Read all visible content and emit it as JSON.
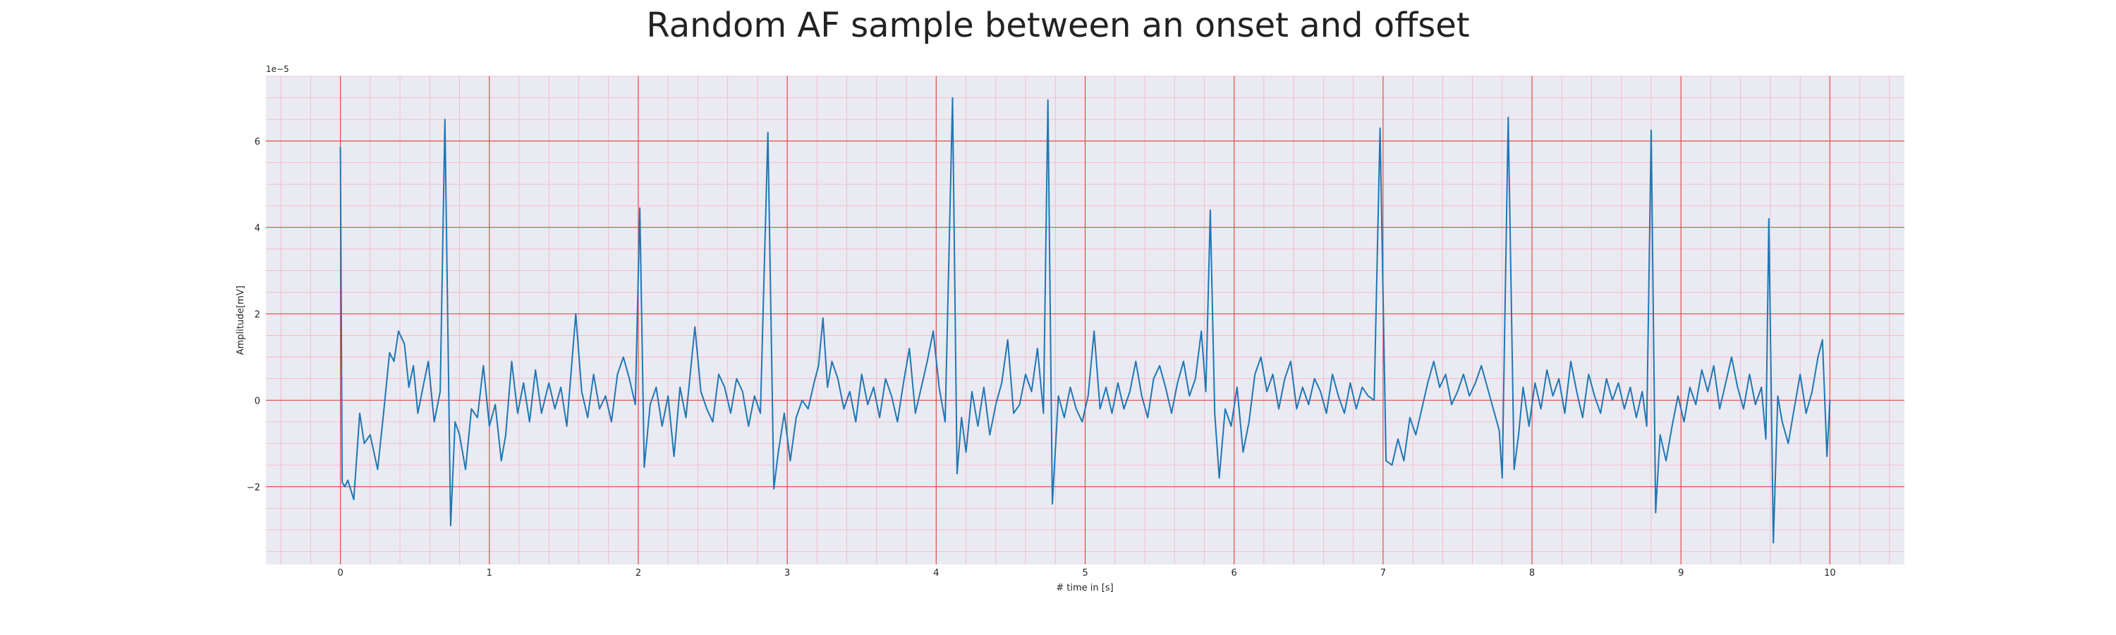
{
  "chart_data": {
    "type": "line",
    "title": "Random AF sample between an onset and offset",
    "xlabel": "# time in [s]",
    "ylabel": "Amplitude[mV]",
    "y_offset_label": "1e−5",
    "xlim": [
      -0.5,
      10.5
    ],
    "ylim": [
      -3.8,
      7.5
    ],
    "x_ticks": [
      0,
      1,
      2,
      3,
      4,
      5,
      6,
      7,
      8,
      9,
      10
    ],
    "y_ticks": [
      -2,
      0,
      2,
      4,
      6
    ],
    "grid": true,
    "grid_color": "#e24a4a",
    "minor_grid_color": "#f3b4c0",
    "plot_background": "#eaeaf2",
    "series": [
      {
        "color": "#1f77b4",
        "keypoints": [
          [
            0.0,
            5.85
          ],
          [
            0.012,
            -1.9
          ],
          [
            0.03,
            -2.0
          ],
          [
            0.05,
            -1.85
          ],
          [
            0.09,
            -2.3
          ],
          [
            0.13,
            -0.3
          ],
          [
            0.16,
            -1.0
          ],
          [
            0.2,
            -0.8
          ],
          [
            0.25,
            -1.6
          ],
          [
            0.29,
            -0.3
          ],
          [
            0.33,
            1.1
          ],
          [
            0.36,
            0.9
          ],
          [
            0.39,
            1.6
          ],
          [
            0.43,
            1.3
          ],
          [
            0.46,
            0.3
          ],
          [
            0.49,
            0.8
          ],
          [
            0.52,
            -0.3
          ],
          [
            0.56,
            0.4
          ],
          [
            0.59,
            0.9
          ],
          [
            0.63,
            -0.5
          ],
          [
            0.67,
            0.2
          ],
          [
            0.702,
            6.5
          ],
          [
            0.74,
            -2.9
          ],
          [
            0.77,
            -0.5
          ],
          [
            0.8,
            -0.8
          ],
          [
            0.84,
            -1.6
          ],
          [
            0.88,
            -0.2
          ],
          [
            0.92,
            -0.4
          ],
          [
            0.96,
            0.8
          ],
          [
            1.0,
            -0.6
          ],
          [
            1.04,
            -0.1
          ],
          [
            1.08,
            -1.4
          ],
          [
            1.11,
            -0.8
          ],
          [
            1.15,
            0.9
          ],
          [
            1.19,
            -0.3
          ],
          [
            1.23,
            0.4
          ],
          [
            1.27,
            -0.5
          ],
          [
            1.31,
            0.7
          ],
          [
            1.35,
            -0.3
          ],
          [
            1.4,
            0.4
          ],
          [
            1.44,
            -0.2
          ],
          [
            1.48,
            0.3
          ],
          [
            1.52,
            -0.6
          ],
          [
            1.58,
            2.0
          ],
          [
            1.62,
            0.2
          ],
          [
            1.66,
            -0.4
          ],
          [
            1.7,
            0.6
          ],
          [
            1.74,
            -0.2
          ],
          [
            1.78,
            0.1
          ],
          [
            1.82,
            -0.5
          ],
          [
            1.86,
            0.6
          ],
          [
            1.9,
            1.0
          ],
          [
            1.94,
            0.5
          ],
          [
            1.98,
            -0.1
          ],
          [
            2.01,
            4.45
          ],
          [
            2.04,
            -1.55
          ],
          [
            2.08,
            -0.1
          ],
          [
            2.12,
            0.3
          ],
          [
            2.16,
            -0.6
          ],
          [
            2.2,
            0.1
          ],
          [
            2.24,
            -1.3
          ],
          [
            2.28,
            0.3
          ],
          [
            2.32,
            -0.4
          ],
          [
            2.38,
            1.7
          ],
          [
            2.42,
            0.2
          ],
          [
            2.46,
            -0.2
          ],
          [
            2.5,
            -0.5
          ],
          [
            2.54,
            0.6
          ],
          [
            2.58,
            0.3
          ],
          [
            2.62,
            -0.3
          ],
          [
            2.66,
            0.5
          ],
          [
            2.7,
            0.2
          ],
          [
            2.74,
            -0.6
          ],
          [
            2.78,
            0.1
          ],
          [
            2.82,
            -0.3
          ],
          [
            2.87,
            6.2
          ],
          [
            2.91,
            -2.05
          ],
          [
            2.94,
            -1.2
          ],
          [
            2.98,
            -0.3
          ],
          [
            3.02,
            -1.4
          ],
          [
            3.06,
            -0.4
          ],
          [
            3.1,
            0.0
          ],
          [
            3.14,
            -0.2
          ],
          [
            3.18,
            0.4
          ],
          [
            3.21,
            0.8
          ],
          [
            3.24,
            1.9
          ],
          [
            3.27,
            0.3
          ],
          [
            3.3,
            0.9
          ],
          [
            3.34,
            0.5
          ],
          [
            3.38,
            -0.2
          ],
          [
            3.42,
            0.2
          ],
          [
            3.46,
            -0.5
          ],
          [
            3.5,
            0.6
          ],
          [
            3.54,
            -0.1
          ],
          [
            3.58,
            0.3
          ],
          [
            3.62,
            -0.4
          ],
          [
            3.66,
            0.5
          ],
          [
            3.7,
            0.1
          ],
          [
            3.74,
            -0.5
          ],
          [
            3.78,
            0.4
          ],
          [
            3.82,
            1.2
          ],
          [
            3.86,
            -0.3
          ],
          [
            3.9,
            0.3
          ],
          [
            3.94,
            0.9
          ],
          [
            3.98,
            1.6
          ],
          [
            4.02,
            0.3
          ],
          [
            4.06,
            -0.5
          ],
          [
            4.11,
            7.0
          ],
          [
            4.14,
            -1.7
          ],
          [
            4.17,
            -0.4
          ],
          [
            4.2,
            -1.2
          ],
          [
            4.24,
            0.2
          ],
          [
            4.28,
            -0.6
          ],
          [
            4.32,
            0.3
          ],
          [
            4.36,
            -0.8
          ],
          [
            4.4,
            -0.1
          ],
          [
            4.44,
            0.4
          ],
          [
            4.48,
            1.4
          ],
          [
            4.52,
            -0.3
          ],
          [
            4.56,
            -0.1
          ],
          [
            4.6,
            0.6
          ],
          [
            4.64,
            0.2
          ],
          [
            4.68,
            1.2
          ],
          [
            4.72,
            -0.3
          ],
          [
            4.75,
            6.95
          ],
          [
            4.78,
            -2.4
          ],
          [
            4.82,
            0.1
          ],
          [
            4.86,
            -0.4
          ],
          [
            4.9,
            0.3
          ],
          [
            4.94,
            -0.2
          ],
          [
            4.98,
            -0.5
          ],
          [
            5.02,
            0.1
          ],
          [
            5.06,
            1.6
          ],
          [
            5.1,
            -0.2
          ],
          [
            5.14,
            0.3
          ],
          [
            5.18,
            -0.3
          ],
          [
            5.22,
            0.4
          ],
          [
            5.26,
            -0.2
          ],
          [
            5.3,
            0.2
          ],
          [
            5.34,
            0.9
          ],
          [
            5.38,
            0.1
          ],
          [
            5.42,
            -0.4
          ],
          [
            5.46,
            0.5
          ],
          [
            5.5,
            0.8
          ],
          [
            5.54,
            0.3
          ],
          [
            5.58,
            -0.3
          ],
          [
            5.62,
            0.4
          ],
          [
            5.66,
            0.9
          ],
          [
            5.7,
            0.1
          ],
          [
            5.74,
            0.5
          ],
          [
            5.78,
            1.6
          ],
          [
            5.81,
            0.2
          ],
          [
            5.84,
            4.4
          ],
          [
            5.87,
            -0.3
          ],
          [
            5.9,
            -1.8
          ],
          [
            5.94,
            -0.2
          ],
          [
            5.98,
            -0.6
          ],
          [
            6.02,
            0.3
          ],
          [
            6.06,
            -1.2
          ],
          [
            6.1,
            -0.5
          ],
          [
            6.14,
            0.6
          ],
          [
            6.18,
            1.0
          ],
          [
            6.22,
            0.2
          ],
          [
            6.26,
            0.6
          ],
          [
            6.3,
            -0.2
          ],
          [
            6.34,
            0.5
          ],
          [
            6.38,
            0.9
          ],
          [
            6.42,
            -0.2
          ],
          [
            6.46,
            0.3
          ],
          [
            6.5,
            -0.1
          ],
          [
            6.54,
            0.5
          ],
          [
            6.58,
            0.2
          ],
          [
            6.62,
            -0.3
          ],
          [
            6.66,
            0.6
          ],
          [
            6.7,
            0.1
          ],
          [
            6.74,
            -0.3
          ],
          [
            6.78,
            0.4
          ],
          [
            6.82,
            -0.2
          ],
          [
            6.86,
            0.3
          ],
          [
            6.9,
            0.1
          ],
          [
            6.94,
            0.0
          ],
          [
            6.98,
            6.3
          ],
          [
            7.02,
            -1.4
          ],
          [
            7.06,
            -1.5
          ],
          [
            7.1,
            -0.9
          ],
          [
            7.14,
            -1.4
          ],
          [
            7.18,
            -0.4
          ],
          [
            7.22,
            -0.8
          ],
          [
            7.26,
            -0.2
          ],
          [
            7.3,
            0.4
          ],
          [
            7.34,
            0.9
          ],
          [
            7.38,
            0.3
          ],
          [
            7.42,
            0.6
          ],
          [
            7.46,
            -0.1
          ],
          [
            7.5,
            0.2
          ],
          [
            7.54,
            0.6
          ],
          [
            7.58,
            0.1
          ],
          [
            7.62,
            0.4
          ],
          [
            7.66,
            0.8
          ],
          [
            7.7,
            0.3
          ],
          [
            7.74,
            -0.2
          ],
          [
            7.78,
            -0.7
          ],
          [
            7.8,
            -1.8
          ],
          [
            7.84,
            6.55
          ],
          [
            7.88,
            -1.6
          ],
          [
            7.91,
            -0.8
          ],
          [
            7.94,
            0.3
          ],
          [
            7.98,
            -0.6
          ],
          [
            8.02,
            0.4
          ],
          [
            8.06,
            -0.2
          ],
          [
            8.1,
            0.7
          ],
          [
            8.14,
            0.1
          ],
          [
            8.18,
            0.5
          ],
          [
            8.22,
            -0.3
          ],
          [
            8.26,
            0.9
          ],
          [
            8.3,
            0.2
          ],
          [
            8.34,
            -0.4
          ],
          [
            8.38,
            0.6
          ],
          [
            8.42,
            0.1
          ],
          [
            8.46,
            -0.3
          ],
          [
            8.5,
            0.5
          ],
          [
            8.54,
            0.0
          ],
          [
            8.58,
            0.4
          ],
          [
            8.62,
            -0.2
          ],
          [
            8.66,
            0.3
          ],
          [
            8.7,
            -0.4
          ],
          [
            8.74,
            0.2
          ],
          [
            8.77,
            -0.6
          ],
          [
            8.8,
            6.25
          ],
          [
            8.83,
            -2.6
          ],
          [
            8.86,
            -0.8
          ],
          [
            8.9,
            -1.4
          ],
          [
            8.94,
            -0.6
          ],
          [
            8.98,
            0.1
          ],
          [
            9.02,
            -0.5
          ],
          [
            9.06,
            0.3
          ],
          [
            9.1,
            -0.1
          ],
          [
            9.14,
            0.7
          ],
          [
            9.18,
            0.2
          ],
          [
            9.22,
            0.8
          ],
          [
            9.26,
            -0.2
          ],
          [
            9.3,
            0.4
          ],
          [
            9.34,
            1.0
          ],
          [
            9.38,
            0.3
          ],
          [
            9.42,
            -0.2
          ],
          [
            9.46,
            0.6
          ],
          [
            9.5,
            -0.1
          ],
          [
            9.54,
            0.3
          ],
          [
            9.57,
            -0.9
          ],
          [
            9.59,
            4.2
          ],
          [
            9.62,
            -3.3
          ],
          [
            9.65,
            0.1
          ],
          [
            9.68,
            -0.5
          ],
          [
            9.72,
            -1.0
          ],
          [
            9.76,
            -0.2
          ],
          [
            9.8,
            0.6
          ],
          [
            9.84,
            -0.3
          ],
          [
            9.88,
            0.2
          ],
          [
            9.92,
            1.0
          ],
          [
            9.95,
            1.4
          ],
          [
            9.98,
            -1.3
          ],
          [
            10.0,
            0.0
          ]
        ]
      }
    ]
  }
}
